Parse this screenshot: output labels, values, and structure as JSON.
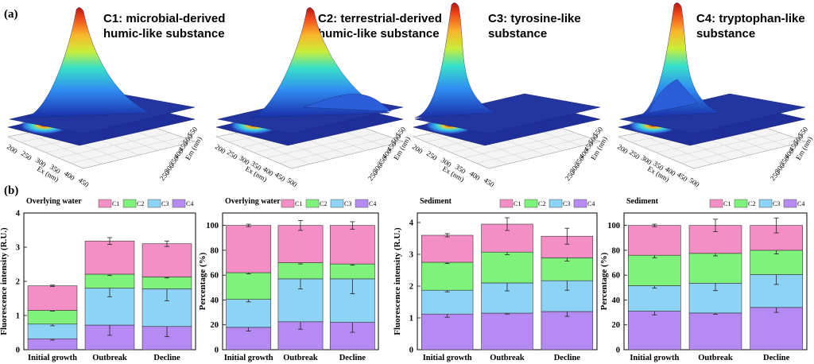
{
  "labels": {
    "panel_a": "(a)",
    "panel_b": "(b)"
  },
  "components": [
    {
      "name": "C1: microbial-derived\nhumic-like substance",
      "ex_label": "Ex (nm)",
      "em_label": "Em (nm)",
      "ex_ticks": [
        "200",
        "250",
        "300",
        "350",
        "400",
        "450"
      ],
      "em_ticks": [
        "250",
        "300",
        "350",
        "400",
        "450",
        "500",
        "550"
      ]
    },
    {
      "name": "C2: terrestrial-derived\nhumic-like substance",
      "ex_label": "Ex (nm)",
      "em_label": "Em (nm)",
      "ex_ticks": [
        "200",
        "250",
        "300",
        "350",
        "400",
        "450",
        "500"
      ],
      "em_ticks": [
        "250",
        "300",
        "350",
        "400",
        "450",
        "500",
        "550"
      ]
    },
    {
      "name": "C3: tyrosine-like\nsubstance",
      "ex_label": "Ex (nm)",
      "em_label": "Em (nm)",
      "ex_ticks": [
        "200",
        "250",
        "300",
        "350",
        "400",
        "450"
      ],
      "em_ticks": [
        "250",
        "300",
        "350",
        "400",
        "450",
        "500",
        "550"
      ]
    },
    {
      "name": "C4: tryptophan-like\nsubstance",
      "ex_label": "Ex (nm)",
      "em_label": "Em (nm)",
      "ex_ticks": [
        "200",
        "250",
        "300",
        "350",
        "400",
        "450",
        "500"
      ],
      "em_ticks": [
        "250",
        "300",
        "350",
        "400",
        "450",
        "500",
        "550"
      ]
    }
  ],
  "colors": {
    "C1": "#f48fc5",
    "C2": "#7ef27a",
    "C3": "#8dd3f5",
    "C4": "#b58af2"
  },
  "chart_data": [
    {
      "type": "bar",
      "stacked": true,
      "title": "Overlying water",
      "categories": [
        "Initial growth",
        "Outbreak",
        "Decline"
      ],
      "ylabel": "Fluorescence intensity (R.U.)",
      "ylim": [
        0,
        4
      ],
      "yticks": [
        "0",
        "1",
        "2",
        "3",
        "4"
      ],
      "legend": [
        "C1",
        "C2",
        "C3",
        "C4"
      ],
      "series": [
        {
          "name": "C4",
          "values": [
            0.32,
            0.72,
            0.68
          ],
          "err": [
            0.04,
            0.3,
            0.3
          ]
        },
        {
          "name": "C3",
          "values": [
            0.43,
            1.08,
            1.1
          ],
          "err": [
            0.05,
            0.25,
            0.35
          ]
        },
        {
          "name": "C2",
          "values": [
            0.4,
            0.41,
            0.35
          ],
          "err": [
            0.02,
            0.04,
            0.03
          ]
        },
        {
          "name": "C1",
          "values": [
            0.72,
            0.97,
            0.97
          ],
          "err": [
            0.02,
            0.1,
            0.08
          ]
        }
      ]
    },
    {
      "type": "bar",
      "stacked": true,
      "title": "Overlying water",
      "categories": [
        "Initial growth",
        "Outbreak",
        "Decline"
      ],
      "ylabel": "Percentage (%)",
      "ylim": [
        0,
        110
      ],
      "yticks": [
        "0",
        "20",
        "40",
        "60",
        "80",
        "100"
      ],
      "legend": [
        "C1",
        "C2",
        "C3",
        "C4"
      ],
      "series": [
        {
          "name": "C4",
          "values": [
            18,
            22.5,
            22
          ],
          "err": [
            3,
            6,
            8
          ]
        },
        {
          "name": "C3",
          "values": [
            22.5,
            34.5,
            35
          ],
          "err": [
            2,
            8,
            12
          ]
        },
        {
          "name": "C2",
          "values": [
            21.5,
            13,
            12
          ],
          "err": [
            1,
            1,
            1
          ]
        },
        {
          "name": "C1",
          "values": [
            38,
            30,
            31
          ],
          "err": [
            1,
            4,
            3
          ]
        }
      ]
    },
    {
      "type": "bar",
      "stacked": true,
      "title": "Sediment",
      "categories": [
        "Initial growth",
        "Outbreak",
        "Decline"
      ],
      "ylabel": "Fluorescence intensity (R.U.)",
      "ylim": [
        0,
        4.3
      ],
      "yticks": [
        "0",
        "1",
        "2",
        "3",
        "4"
      ],
      "legend": [
        "C1",
        "C2",
        "C3",
        "C4"
      ],
      "series": [
        {
          "name": "C4",
          "values": [
            1.12,
            1.15,
            1.2
          ],
          "err": [
            0.1,
            0.03,
            0.15
          ]
        },
        {
          "name": "C3",
          "values": [
            0.75,
            0.95,
            0.97
          ],
          "err": [
            0.05,
            0.25,
            0.3
          ]
        },
        {
          "name": "C2",
          "values": [
            0.88,
            0.97,
            0.72
          ],
          "err": [
            0.04,
            0.08,
            0.1
          ]
        },
        {
          "name": "C1",
          "values": [
            0.85,
            0.88,
            0.68
          ],
          "err": [
            0.05,
            0.2,
            0.25
          ]
        }
      ]
    },
    {
      "type": "bar",
      "stacked": true,
      "title": "Sediment",
      "categories": [
        "Initial growth",
        "Outbreak",
        "Decline"
      ],
      "ylabel": "Percentage (%)",
      "ylim": [
        0,
        110
      ],
      "yticks": [
        "0",
        "20",
        "40",
        "60",
        "80",
        "100"
      ],
      "legend": [
        "C1",
        "C2",
        "C3",
        "C4"
      ],
      "series": [
        {
          "name": "C4",
          "values": [
            31,
            29.5,
            34
          ],
          "err": [
            3,
            1,
            4
          ]
        },
        {
          "name": "C3",
          "values": [
            20.5,
            24,
            26.5
          ],
          "err": [
            2,
            6,
            8
          ]
        },
        {
          "name": "C2",
          "values": [
            24.5,
            24,
            19.5
          ],
          "err": [
            2,
            2,
            3
          ]
        },
        {
          "name": "C1",
          "values": [
            24,
            22.5,
            20
          ],
          "err": [
            1,
            5,
            6
          ]
        }
      ]
    }
  ]
}
